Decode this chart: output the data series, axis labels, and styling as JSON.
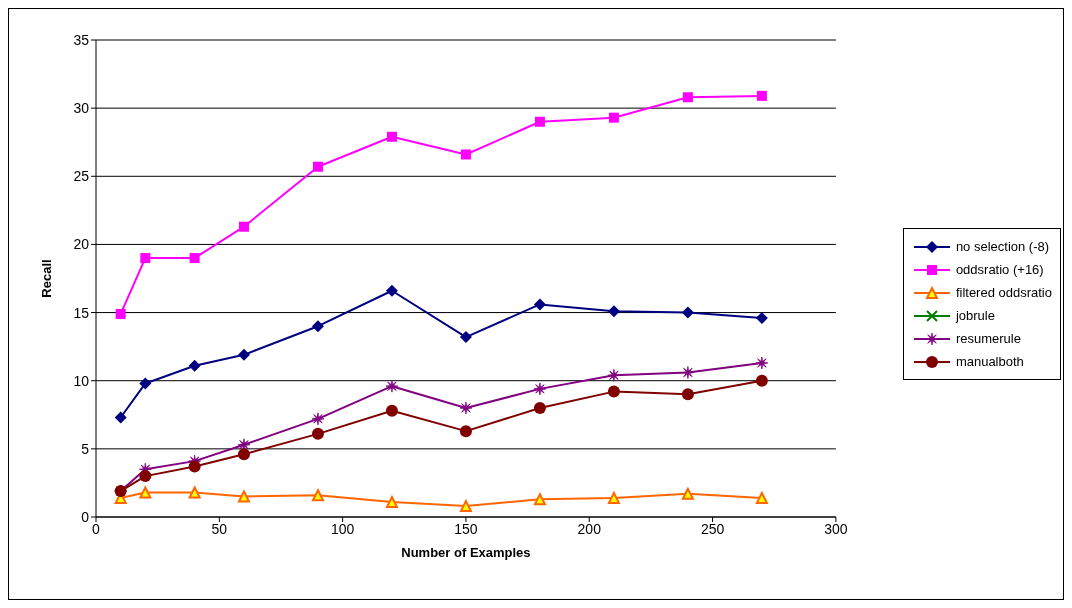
{
  "chart_data": {
    "type": "line",
    "xlabel": "Number of Examples",
    "ylabel": "Recall",
    "x": [
      10,
      20,
      40,
      60,
      90,
      120,
      150,
      180,
      210,
      240,
      270
    ],
    "xlim": [
      0,
      300
    ],
    "xticks": [
      0,
      50,
      100,
      150,
      200,
      250,
      300
    ],
    "ylim": [
      0,
      35
    ],
    "yticks": [
      0,
      5,
      10,
      15,
      20,
      25,
      30,
      35
    ],
    "grid": "y",
    "legend": "right",
    "series": [
      {
        "name": "no selection (-8)",
        "color": "#000080",
        "marker": "diamond",
        "values": [
          7.3,
          9.8,
          11.1,
          11.9,
          14.0,
          16.6,
          13.2,
          15.6,
          15.1,
          15.0,
          14.6
        ]
      },
      {
        "name": "oddsratio (+16)",
        "color": "#ff00ff",
        "marker": "square",
        "values": [
          14.9,
          19.0,
          19.0,
          21.3,
          25.7,
          27.9,
          26.6,
          29.0,
          29.3,
          30.8,
          30.9
        ]
      },
      {
        "name": "filtered oddsratio",
        "color": "#ff6600",
        "marker": "triangle",
        "values": [
          1.4,
          1.8,
          1.8,
          1.5,
          1.6,
          1.1,
          0.8,
          1.3,
          1.4,
          1.7,
          1.4
        ]
      },
      {
        "name": "jobrule",
        "color": "#008000",
        "marker": "cross",
        "values": [
          null,
          null,
          null,
          null,
          null,
          null,
          null,
          null,
          null,
          null,
          null
        ]
      },
      {
        "name": "resumerule",
        "color": "#800080",
        "marker": "star",
        "values": [
          1.9,
          3.5,
          4.1,
          5.3,
          7.2,
          9.6,
          8.0,
          9.4,
          10.4,
          10.6,
          11.3
        ]
      },
      {
        "name": "manualboth",
        "color": "#800000",
        "marker": "circle",
        "values": [
          1.9,
          3.0,
          3.7,
          4.6,
          6.1,
          7.8,
          6.3,
          8.0,
          9.2,
          9.0,
          10.0
        ]
      }
    ]
  }
}
